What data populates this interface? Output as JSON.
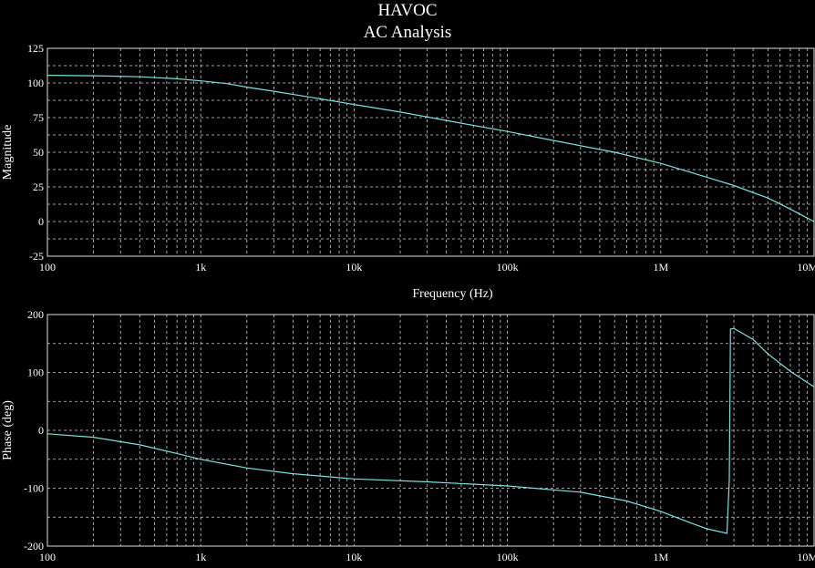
{
  "header": {
    "title": "HAVOC",
    "subtitle": "AC Analysis"
  },
  "colors": {
    "background": "#000000",
    "trace": "#7fe0e0",
    "grid": "#cfcfcf",
    "text": "#ffffff"
  },
  "chart_data": [
    {
      "type": "line",
      "xscale": "log",
      "xlim": [
        100,
        10000000
      ],
      "ylim": [
        -25,
        125
      ],
      "xlabel": "Frequency (Hz)",
      "ylabel": "Magnitude",
      "grid": true,
      "xticks": [
        {
          "value": 100,
          "label": "100"
        },
        {
          "value": 1000,
          "label": "1k"
        },
        {
          "value": 10000,
          "label": "10k"
        },
        {
          "value": 100000,
          "label": "100k"
        },
        {
          "value": 1000000,
          "label": "1M"
        },
        {
          "value": 10000000,
          "label": "10M"
        }
      ],
      "yticks": [
        {
          "value": 125,
          "label": "125"
        },
        {
          "value": 100,
          "label": "100"
        },
        {
          "value": 75,
          "label": "75"
        },
        {
          "value": 50,
          "label": "50"
        },
        {
          "value": 25,
          "label": "25"
        },
        {
          "value": 0,
          "label": "0"
        },
        {
          "value": -25,
          "label": "-25"
        }
      ],
      "series": [
        {
          "x": [
            100,
            200,
            400,
            700,
            1000,
            1500,
            2000,
            3000,
            5000,
            10000,
            20000,
            50000,
            100000,
            200000,
            500000,
            1000000,
            2000000,
            3000000,
            5000000,
            7000000,
            10000000
          ],
          "y": [
            105.5,
            105.2,
            104.5,
            103,
            101.5,
            99.5,
            97,
            94,
            90,
            84.5,
            79,
            71,
            65,
            58.5,
            50,
            42,
            32,
            26,
            17,
            9,
            0
          ]
        }
      ]
    },
    {
      "type": "line",
      "xscale": "log",
      "xlim": [
        100,
        10000000
      ],
      "ylim": [
        -200,
        200
      ],
      "xlabel": "",
      "ylabel": "Phase (deg)",
      "grid": true,
      "xticks": [
        {
          "value": 100,
          "label": "100"
        },
        {
          "value": 1000,
          "label": "1k"
        },
        {
          "value": 10000,
          "label": "10k"
        },
        {
          "value": 100000,
          "label": "100k"
        },
        {
          "value": 1000000,
          "label": "1M"
        },
        {
          "value": 10000000,
          "label": "10M"
        }
      ],
      "yticks": [
        {
          "value": 200,
          "label": "200"
        },
        {
          "value": 100,
          "label": "100"
        },
        {
          "value": 0,
          "label": "0"
        },
        {
          "value": -100,
          "label": "-100"
        },
        {
          "value": -200,
          "label": "-200"
        }
      ],
      "series": [
        {
          "x": [
            100,
            200,
            400,
            700,
            1000,
            2000,
            4000,
            10000,
            30000,
            100000,
            300000,
            600000,
            1000000,
            1500000,
            2000000,
            2700000,
            2800000,
            2850000,
            3000000,
            4000000,
            5000000,
            7000000,
            10000000
          ],
          "y": [
            -6,
            -12,
            -25,
            -40,
            -50,
            -65,
            -75,
            -84,
            -89,
            -96,
            -107,
            -122,
            -140,
            -158,
            -170,
            -178,
            -85,
            175,
            176,
            157,
            132,
            102,
            75
          ]
        }
      ]
    }
  ]
}
